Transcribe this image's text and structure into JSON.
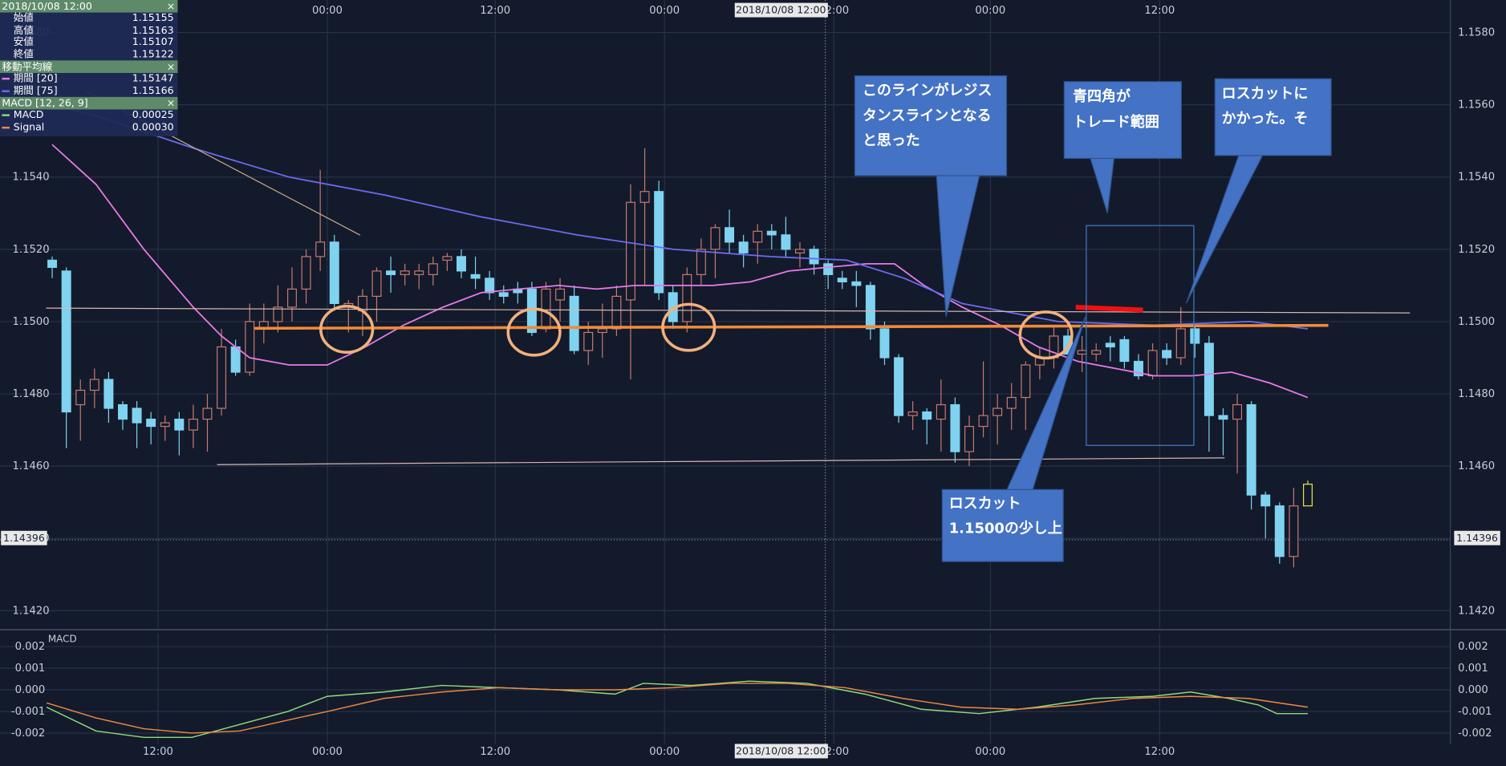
{
  "chart_data": [
    {
      "type": "candlestick",
      "open": [
        1.1517,
        1.1514,
        1.1477,
        1.1481,
        1.1484,
        1.1477,
        1.1476,
        1.1473,
        1.1471,
        1.1473,
        1.147,
        1.1473,
        1.1476,
        1.1493,
        1.1486,
        1.1498,
        1.15,
        1.1504,
        1.1509,
        1.1518,
        1.1522,
        1.1504,
        1.1503,
        1.1507,
        1.1514,
        1.1513,
        1.1513,
        1.1513,
        1.1517,
        1.1518,
        1.1513,
        1.1512,
        1.1508,
        1.1509,
        1.1509,
        1.1498,
        1.1506,
        1.1507,
        1.1492,
        1.1497,
        1.1498,
        1.1506,
        1.1533,
        1.1536,
        1.1508,
        1.15,
        1.1513,
        1.152,
        1.1526,
        1.1522,
        1.1522,
        1.1525,
        1.1524,
        1.1519,
        1.152,
        1.1516,
        1.1512,
        1.1511,
        1.151,
        1.1498,
        1.149,
        1.1474,
        1.1475,
        1.1473,
        1.1477,
        1.1464,
        1.1471,
        1.1474,
        1.1476,
        1.1479,
        1.1488,
        1.149,
        1.1496,
        1.1491,
        1.1491,
        1.1494,
        1.1495,
        1.1489,
        1.1485,
        1.1492,
        1.149,
        1.1498,
        1.1494,
        1.1474,
        1.1473,
        1.1477,
        1.1452,
        1.1449,
        1.1435,
        1.1449
      ],
      "high": [
        1.1518,
        1.1515,
        1.1484,
        1.1487,
        1.1486,
        1.1478,
        1.1478,
        1.1475,
        1.1474,
        1.1475,
        1.1477,
        1.148,
        1.1498,
        1.1495,
        1.1505,
        1.1505,
        1.151,
        1.1515,
        1.152,
        1.1542,
        1.1524,
        1.1506,
        1.1509,
        1.1515,
        1.1518,
        1.1516,
        1.1516,
        1.1518,
        1.1519,
        1.152,
        1.1518,
        1.1514,
        1.151,
        1.1511,
        1.1511,
        1.1511,
        1.1512,
        1.151,
        1.15,
        1.1505,
        1.151,
        1.1538,
        1.1548,
        1.1539,
        1.151,
        1.1515,
        1.1523,
        1.1527,
        1.1531,
        1.1524,
        1.1527,
        1.1527,
        1.1529,
        1.1522,
        1.1521,
        1.1517,
        1.1514,
        1.1514,
        1.1511,
        1.15,
        1.1491,
        1.1478,
        1.1476,
        1.1484,
        1.1479,
        1.1474,
        1.1489,
        1.148,
        1.1483,
        1.1489,
        1.1493,
        1.1499,
        1.1498,
        1.1496,
        1.1494,
        1.1496,
        1.1496,
        1.1491,
        1.1494,
        1.1494,
        1.1504,
        1.1499,
        1.1496,
        1.1476,
        1.148,
        1.1478,
        1.1453,
        1.145,
        1.1454,
        1.1456
      ],
      "low": [
        1.1512,
        1.1465,
        1.1467,
        1.1476,
        1.1472,
        1.147,
        1.1465,
        1.1466,
        1.1467,
        1.1463,
        1.1465,
        1.1464,
        1.1474,
        1.1485,
        1.1485,
        1.1494,
        1.1497,
        1.15,
        1.1505,
        1.1514,
        1.1503,
        1.1497,
        1.1496,
        1.15,
        1.1508,
        1.151,
        1.1509,
        1.151,
        1.1514,
        1.1512,
        1.1509,
        1.1506,
        1.1505,
        1.1505,
        1.1496,
        1.1497,
        1.15,
        1.1491,
        1.1488,
        1.149,
        1.1496,
        1.1484,
        1.151,
        1.1506,
        1.1498,
        1.1497,
        1.151,
        1.1512,
        1.1519,
        1.1515,
        1.1516,
        1.152,
        1.1518,
        1.1515,
        1.1513,
        1.1509,
        1.1509,
        1.1504,
        1.1495,
        1.1488,
        1.1472,
        1.147,
        1.1466,
        1.1464,
        1.1461,
        1.146,
        1.1468,
        1.1466,
        1.147,
        1.147,
        1.1484,
        1.1487,
        1.1489,
        1.1486,
        1.1489,
        1.1489,
        1.1487,
        1.1484,
        1.1484,
        1.1488,
        1.1488,
        1.149,
        1.1464,
        1.1463,
        1.1458,
        1.1448,
        1.144,
        1.1433,
        1.1432,
        1.1449
      ],
      "close": [
        1.1515,
        1.1475,
        1.1481,
        1.1484,
        1.1476,
        1.1473,
        1.1472,
        1.1471,
        1.1472,
        1.147,
        1.1473,
        1.1476,
        1.1493,
        1.1486,
        1.15,
        1.15,
        1.1504,
        1.1509,
        1.1518,
        1.1522,
        1.1505,
        1.1505,
        1.1507,
        1.1514,
        1.1513,
        1.1514,
        1.1514,
        1.1516,
        1.1518,
        1.1514,
        1.1512,
        1.1508,
        1.1507,
        1.1508,
        1.1497,
        1.1509,
        1.1509,
        1.1492,
        1.1497,
        1.1498,
        1.1507,
        1.1533,
        1.1536,
        1.1508,
        1.15,
        1.1513,
        1.152,
        1.1526,
        1.1522,
        1.1519,
        1.1525,
        1.1524,
        1.152,
        1.152,
        1.1516,
        1.1513,
        1.1511,
        1.151,
        1.1498,
        1.149,
        1.1474,
        1.1475,
        1.1473,
        1.1477,
        1.1464,
        1.1471,
        1.1474,
        1.1476,
        1.1479,
        1.1488,
        1.149,
        1.1496,
        1.1491,
        1.1492,
        1.1492,
        1.1493,
        1.1489,
        1.1485,
        1.1492,
        1.149,
        1.1498,
        1.1494,
        1.1474,
        1.1473,
        1.1477,
        1.1452,
        1.1449,
        1.1435,
        1.1449,
        1.1455
      ],
      "colors": {
        "up": "#c47a70",
        "down": "#7fd3f0",
        "last": "#e6e64a"
      },
      "overlays": [
        {
          "name": "期間 [20]",
          "color": "#e67ae6",
          "x": [
            0,
            3.1,
            6.5,
            10.0,
            12.0,
            14.0,
            16.8,
            19.5,
            22.2,
            24.9,
            27.7,
            30.4,
            33.1,
            35.9,
            38.6,
            41.3,
            44.0,
            46.8,
            49.5,
            52.2,
            54.9,
            57.7,
            59.7,
            61.8,
            64.5,
            67.2,
            69.9,
            72.7,
            75.4,
            78.1,
            80.8,
            83.6,
            86.3,
            89.0
          ],
          "values": [
            1.1549,
            1.1538,
            1.152,
            1.1504,
            1.1496,
            1.149,
            1.1488,
            1.1488,
            1.1493,
            1.1499,
            1.1504,
            1.1508,
            1.1509,
            1.151,
            1.1509,
            1.151,
            1.151,
            1.151,
            1.1511,
            1.1514,
            1.1515,
            1.1516,
            1.1516,
            1.151,
            1.1504,
            1.1499,
            1.1493,
            1.1489,
            1.1487,
            1.1485,
            1.1485,
            1.1486,
            1.1483,
            1.1479
          ]
        },
        {
          "name": "期間 [75]",
          "color": "#6b6bf0",
          "x": [
            0,
            3.1,
            10.0,
            16.8,
            23.6,
            30.4,
            37.2,
            44.0,
            50.9,
            56.3,
            60.4,
            64.5,
            68.6,
            71.3,
            78.1,
            84.9,
            89.0
          ],
          "values": [
            1.156,
            1.1557,
            1.1548,
            1.154,
            1.1535,
            1.1529,
            1.1524,
            1.152,
            1.1518,
            1.1517,
            1.1512,
            1.1505,
            1.1502,
            1.15,
            1.1499,
            1.15,
            1.1498
          ]
        }
      ],
      "xlim": [
        -3.7,
        99.1
      ],
      "xticks": [
        {
          "value": 7.5,
          "label": "12:00"
        },
        {
          "value": 19.5,
          "label": "00:00"
        },
        {
          "value": 31.4,
          "label": "12:00"
        },
        {
          "value": 43.4,
          "label": "00:00"
        },
        {
          "value": 55.4,
          "label": "12:00"
        },
        {
          "value": 66.5,
          "label": "00:00"
        },
        {
          "value": 78.5,
          "label": "12:00"
        }
      ],
      "ylim": [
        1.1415,
        1.1589
      ],
      "yticks": [
        {
          "value": 1.142,
          "label": "1.1420"
        },
        {
          "value": 1.144,
          "label": "1.1440"
        },
        {
          "value": 1.146,
          "label": "1.1460"
        },
        {
          "value": 1.148,
          "label": "1.1480"
        },
        {
          "value": 1.15,
          "label": "1.1500"
        },
        {
          "value": 1.152,
          "label": "1.1520"
        },
        {
          "value": 1.154,
          "label": "1.1540"
        },
        {
          "value": 1.156,
          "label": "1.1560"
        },
        {
          "value": 1.158,
          "label": "1.1580"
        }
      ],
      "grid": true,
      "crosshair": {
        "price": 1.14396,
        "time": "2018/10/08 12:00",
        "index": 54.8
      },
      "annotations": [
        {
          "lines": [
            "このラインがレジス",
            "タンスラインとなる",
            "と思った"
          ]
        },
        {
          "lines": [
            "青四角が",
            "トレード範囲"
          ]
        },
        {
          "lines": [
            "ロスカットに",
            "かかった。そ"
          ]
        },
        {
          "lines": [
            "ロスカット",
            "1.1500の少し上"
          ]
        }
      ]
    },
    {
      "type": "line",
      "title": "MACD",
      "series": [
        {
          "name": "MACD",
          "color": "#8fdc7c",
          "x": [
            -0.4,
            3.1,
            6.5,
            9.9,
            13.3,
            16.7,
            19.5,
            23.5,
            27.6,
            31.7,
            35.8,
            39.9,
            41.9,
            45.3,
            49.4,
            53.5,
            57.6,
            61.6,
            65.7,
            69.8,
            73.9,
            78.0,
            80.7,
            83.4,
            85.5,
            86.8,
            89.0
          ],
          "values": [
            -0.0008,
            -0.0019,
            -0.0022,
            -0.0022,
            -0.0016,
            -0.001,
            -0.0003,
            -0.0001,
            0.0002,
            0.0001,
            0,
            -0.0002,
            0.0003,
            0.0002,
            0.0004,
            0.0003,
            -0.0002,
            -0.0009,
            -0.0011,
            -0.0008,
            -0.0004,
            -0.0003,
            -0.0001,
            -0.0004,
            -0.0007,
            -0.0011,
            -0.0011
          ]
        },
        {
          "name": "Signal",
          "color": "#ee8a44",
          "x": [
            -0.4,
            3.1,
            6.5,
            9.9,
            13.3,
            16.7,
            19.5,
            23.5,
            27.6,
            31.7,
            35.8,
            39.9,
            44.0,
            48.0,
            52.1,
            56.2,
            60.3,
            64.4,
            68.4,
            72.5,
            76.6,
            80.7,
            84.8,
            89.0
          ],
          "values": [
            -0.0006,
            -0.0013,
            -0.0018,
            -0.002,
            -0.0019,
            -0.0014,
            -0.001,
            -0.0004,
            -0.0001,
            0.0001,
            0,
            0,
            0.0001,
            0.0003,
            0.0003,
            0.0001,
            -0.0004,
            -0.0008,
            -0.0009,
            -0.0007,
            -0.0004,
            -0.0003,
            -0.0004,
            -0.0008
          ]
        }
      ],
      "xlim": [
        -3.7,
        99.1
      ],
      "xticks": [
        {
          "value": 7.5,
          "label": "12:00"
        },
        {
          "value": 19.5,
          "label": "00:00"
        },
        {
          "value": 31.4,
          "label": "12:00"
        },
        {
          "value": 43.4,
          "label": "00:00"
        },
        {
          "value": 55.4,
          "label": "12:00"
        },
        {
          "value": 66.5,
          "label": "00:00"
        },
        {
          "value": 78.5,
          "label": "12:00"
        }
      ],
      "ylim": [
        -0.0025,
        0.0026
      ],
      "yticks": [
        -0.002,
        -0.001,
        {
          "value": 0,
          "label": "0.000"
        },
        0.001,
        0.002
      ],
      "grid": true
    }
  ],
  "info_panel": {
    "time": "2018/10/08 12:00",
    "close_icon": "×",
    "ohlc": [
      {
        "label": "始値",
        "value": "1.15155"
      },
      {
        "label": "高値",
        "value": "1.15163"
      },
      {
        "label": "安値",
        "value": "1.15107"
      },
      {
        "label": "終値",
        "value": "1.15122"
      }
    ],
    "ma_title": "移動平均線",
    "ma_values": [
      "1.15147",
      "1.15166"
    ],
    "macd_title": "MACD [12, 26, 9]",
    "macd_values": [
      "0.00025",
      "0.00030"
    ]
  }
}
